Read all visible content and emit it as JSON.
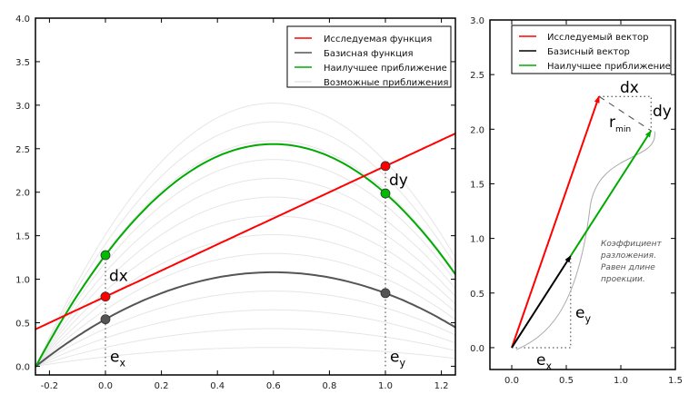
{
  "chart_data": [
    {
      "type": "line",
      "xlim": [
        -0.25,
        1.25
      ],
      "ylim": [
        -0.1,
        4.0
      ],
      "xticks": [
        -0.2,
        0.0,
        0.2,
        0.4,
        0.6,
        0.8,
        1.0,
        1.2
      ],
      "yticks": [
        0.0,
        0.5,
        1.0,
        1.5,
        2.0,
        2.5,
        3.0,
        3.5,
        4.0
      ],
      "grid": false,
      "legend_position": "top-right",
      "colors": {
        "target": "#ff0000",
        "basis": "#555555",
        "best": "#00aa00",
        "possible": "#e6e6e6"
      },
      "target_function": {
        "name": "Исследуемая функция",
        "intercept": 0.8,
        "slope": 1.5
      },
      "basis_function": {
        "name": "Базисная функция",
        "coefficients_quadratic": [
          -1.5,
          1.8,
          0.54
        ]
      },
      "best_approximation": {
        "name": "Наилучшее приближение",
        "scale": 2.364
      },
      "possible_approximations": {
        "name": "Возможные приближения",
        "scales": [
          0.2,
          0.4,
          0.6,
          0.8,
          1.0,
          1.2,
          1.4,
          1.6,
          1.8,
          2.0,
          2.2,
          2.4,
          2.6,
          2.8
        ]
      },
      "points": [
        {
          "x": 0,
          "y": 0.8,
          "color": "#ff0000"
        },
        {
          "x": 1,
          "y": 2.3,
          "color": "#ff0000"
        },
        {
          "x": 0,
          "y": 1.277,
          "color": "#00bb00"
        },
        {
          "x": 1,
          "y": 1.986,
          "color": "#00bb00"
        },
        {
          "x": 0,
          "y": 0.54,
          "color": "#555555"
        },
        {
          "x": 1,
          "y": 0.84,
          "color": "#555555"
        }
      ],
      "annotations": {
        "dx": "dx",
        "dy": "dy",
        "ex": "e",
        "ex_sub": "x",
        "ey": "e",
        "ey_sub": "y"
      }
    },
    {
      "type": "line",
      "xlim": [
        -0.2,
        1.5
      ],
      "ylim": [
        -0.2,
        3.0
      ],
      "xticks": [
        0.0,
        0.5,
        1.0,
        1.5
      ],
      "yticks": [
        0.0,
        0.5,
        1.0,
        1.5,
        2.0,
        2.5,
        3.0
      ],
      "grid": false,
      "legend_position": "top-right",
      "vectors": [
        {
          "name": "Исследуемый вектор",
          "from": [
            0,
            0
          ],
          "to": [
            0.8,
            2.3
          ],
          "color": "#ff0000"
        },
        {
          "name": "Базисный вектор",
          "from": [
            0,
            0
          ],
          "to": [
            0.54,
            0.84
          ],
          "color": "#000000"
        },
        {
          "name": "Наилучшее приближение",
          "from": [
            0.54,
            0.84
          ],
          "to": [
            1.277,
            1.986
          ],
          "color": "#00aa00"
        }
      ],
      "annotations": {
        "dx": "dx",
        "dy": "dy",
        "rmin": "r",
        "rmin_sub": "min",
        "ex": "e",
        "ex_sub": "x",
        "ey": "e",
        "ey_sub": "y",
        "note": [
          "Коэффициент",
          "разложения.",
          "Равен длине",
          "проекции."
        ]
      }
    }
  ]
}
